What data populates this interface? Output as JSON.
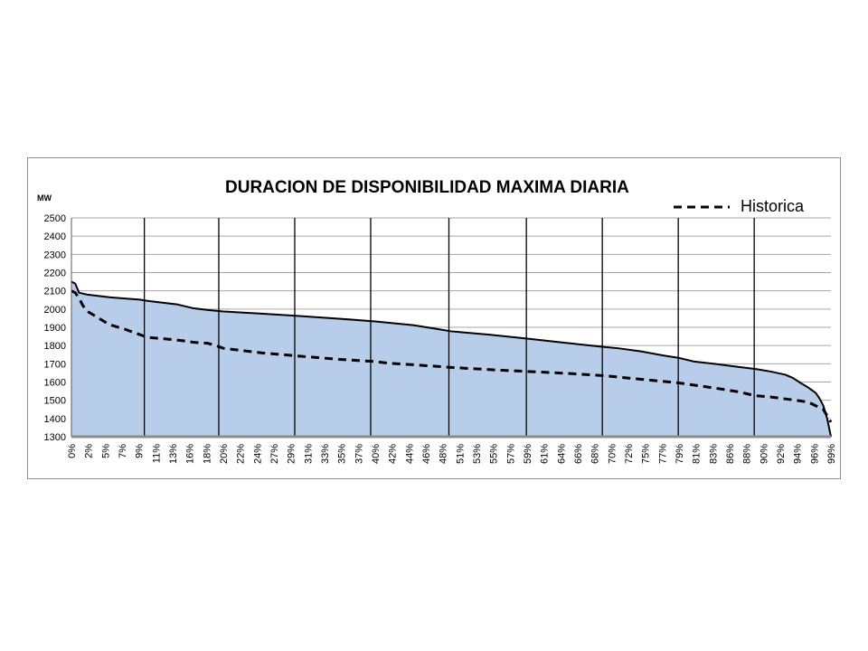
{
  "chart_data": {
    "type": "area",
    "title": "DURACION DE DISPONIBILIDAD MAXIMA DIARIA",
    "ylabel": "MW",
    "ylim": [
      1300,
      2500
    ],
    "yticks": [
      "2500",
      "2400",
      "2300",
      "2200",
      "2100",
      "2000",
      "1900",
      "1800",
      "1700",
      "1600",
      "1500",
      "1400",
      "1300"
    ],
    "xlim": [
      0,
      100
    ],
    "xtick_labels": [
      "0%",
      "2%",
      "5%",
      "7%",
      "9%",
      "11%",
      "13%",
      "16%",
      "18%",
      "20%",
      "22%",
      "24%",
      "27%",
      "29%",
      "31%",
      "33%",
      "35%",
      "37%",
      "40%",
      "42%",
      "44%",
      "46%",
      "48%",
      "51%",
      "53%",
      "55%",
      "57%",
      "59%",
      "61%",
      "64%",
      "66%",
      "68%",
      "70%",
      "72%",
      "75%",
      "77%",
      "79%",
      "81%",
      "83%",
      "86%",
      "88%",
      "90%",
      "92%",
      "94%",
      "96%",
      "99%"
    ],
    "vertical_markers": [
      9.6,
      19.4,
      29.4,
      39.4,
      49.7,
      59.9,
      69.9,
      79.9,
      89.9
    ],
    "grid": true,
    "legend": {
      "position": "top-right",
      "entries": [
        "Historica"
      ]
    },
    "colors": {
      "area": "#b8cde9",
      "line": "#000000",
      "grid": "#a6a6a6"
    },
    "series": [
      {
        "style": "area-solid-line",
        "x": [
          0,
          0.5,
          1,
          2,
          3,
          5,
          7,
          9,
          10,
          12,
          13,
          14,
          16,
          18,
          20,
          25,
          30,
          35,
          40,
          45,
          48,
          50,
          55,
          60,
          65,
          70,
          72,
          75,
          78,
          80,
          82,
          85,
          88,
          90,
          92,
          94,
          95,
          96,
          97,
          98,
          98.5,
          99,
          99.5,
          100
        ],
        "values": [
          2150,
          2140,
          2090,
          2080,
          2075,
          2065,
          2058,
          2052,
          2045,
          2035,
          2030,
          2025,
          2005,
          1995,
          1987,
          1975,
          1962,
          1948,
          1932,
          1912,
          1892,
          1878,
          1860,
          1838,
          1815,
          1793,
          1785,
          1768,
          1745,
          1732,
          1712,
          1698,
          1682,
          1672,
          1658,
          1640,
          1622,
          1595,
          1570,
          1540,
          1510,
          1470,
          1400,
          1300
        ]
      },
      {
        "name": "Historica",
        "style": "dashed",
        "x": [
          0,
          0.5,
          1,
          1.5,
          2,
          3,
          5,
          7,
          9,
          10,
          12,
          15,
          16,
          18,
          19,
          20,
          25,
          30,
          35,
          40,
          42,
          45,
          50,
          55,
          60,
          65,
          70,
          75,
          80,
          85,
          88,
          89,
          90,
          92,
          95,
          97,
          98,
          99,
          100
        ],
        "values": [
          2100,
          2090,
          2060,
          2020,
          1990,
          1965,
          1915,
          1890,
          1860,
          1845,
          1838,
          1825,
          1818,
          1812,
          1800,
          1785,
          1760,
          1742,
          1725,
          1712,
          1702,
          1695,
          1680,
          1668,
          1658,
          1648,
          1635,
          1615,
          1595,
          1565,
          1545,
          1535,
          1525,
          1518,
          1502,
          1490,
          1470,
          1450,
          1380
        ]
      }
    ]
  }
}
